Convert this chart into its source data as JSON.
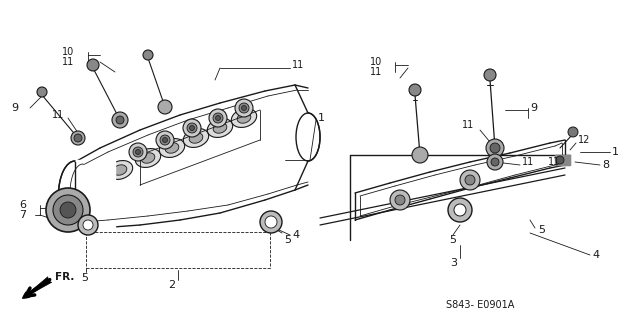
{
  "bg_color": "#ffffff",
  "line_color": "#1a1a1a",
  "title_ref": "S843- E0901A",
  "lw_main": 1.0,
  "lw_thin": 0.6,
  "lw_label": 0.5
}
